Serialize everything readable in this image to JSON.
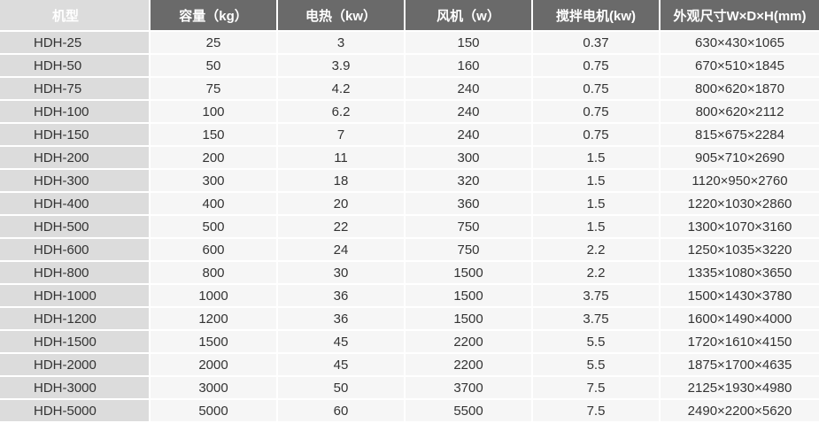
{
  "table": {
    "header": [
      "机型",
      "容量（kg）",
      "电热（kw）",
      "风机（w）",
      "搅拌电机(kw)",
      "外观尺寸W×D×H(mm)"
    ],
    "rows": [
      [
        "HDH-25",
        "25",
        "3",
        "150",
        "0.37",
        "630×430×1065"
      ],
      [
        "HDH-50",
        "50",
        "3.9",
        "160",
        "0.75",
        "670×510×1845"
      ],
      [
        "HDH-75",
        "75",
        "4.2",
        "240",
        "0.75",
        "800×620×1870"
      ],
      [
        "HDH-100",
        "100",
        "6.2",
        "240",
        "0.75",
        "800×620×2112"
      ],
      [
        "HDH-150",
        "150",
        "7",
        "240",
        "0.75",
        "815×675×2284"
      ],
      [
        "HDH-200",
        "200",
        "11",
        "300",
        "1.5",
        "905×710×2690"
      ],
      [
        "HDH-300",
        "300",
        "18",
        "320",
        "1.5",
        "1120×950×2760"
      ],
      [
        "HDH-400",
        "400",
        "20",
        "360",
        "1.5",
        "1220×1030×2860"
      ],
      [
        "HDH-500",
        "500",
        "22",
        "750",
        "1.5",
        "1300×1070×3160"
      ],
      [
        "HDH-600",
        "600",
        "24",
        "750",
        "2.2",
        "1250×1035×3220"
      ],
      [
        "HDH-800",
        "800",
        "30",
        "1500",
        "2.2",
        "1335×1080×3650"
      ],
      [
        "HDH-1000",
        "1000",
        "36",
        "1500",
        "3.75",
        "1500×1430×3780"
      ],
      [
        "HDH-1200",
        "1200",
        "36",
        "1500",
        "3.75",
        "1600×1490×4000"
      ],
      [
        "HDH-1500",
        "1500",
        "45",
        "2200",
        "5.5",
        "1720×1610×4150"
      ],
      [
        "HDH-2000",
        "2000",
        "45",
        "2200",
        "5.5",
        "1875×1700×4635"
      ],
      [
        "HDH-3000",
        "3000",
        "50",
        "3700",
        "7.5",
        "2125×1930×4980"
      ],
      [
        "HDH-5000",
        "5000",
        "60",
        "5500",
        "7.5",
        "2490×2200×5620"
      ]
    ]
  }
}
